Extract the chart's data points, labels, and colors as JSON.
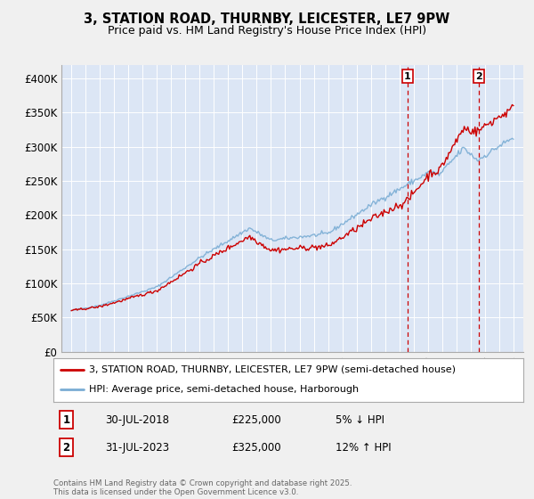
{
  "title_line1": "3, STATION ROAD, THURNBY, LEICESTER, LE7 9PW",
  "title_line2": "Price paid vs. HM Land Registry's House Price Index (HPI)",
  "background_color": "#f0f4ff",
  "plot_bg_color": "#dce6f5",
  "grid_color": "#ffffff",
  "ylim": [
    0,
    420000
  ],
  "yticks": [
    0,
    50000,
    100000,
    150000,
    200000,
    250000,
    300000,
    350000,
    400000
  ],
  "ytick_labels": [
    "£0",
    "£50K",
    "£100K",
    "£150K",
    "£200K",
    "£250K",
    "£300K",
    "£350K",
    "£400K"
  ],
  "legend_line1": "3, STATION ROAD, THURNBY, LEICESTER, LE7 9PW (semi-detached house)",
  "legend_line2": "HPI: Average price, semi-detached house, Harborough",
  "transaction1_date": "30-JUL-2018",
  "transaction1_price": 225000,
  "transaction1_label": "1",
  "transaction1_note": "5% ↓ HPI",
  "transaction2_date": "31-JUL-2023",
  "transaction2_price": 325000,
  "transaction2_label": "2",
  "transaction2_note": "12% ↑ HPI",
  "marker1_x": 2018.58,
  "marker2_x": 2023.58,
  "footer": "Contains HM Land Registry data © Crown copyright and database right 2025.\nThis data is licensed under the Open Government Licence v3.0.",
  "line_color_red": "#cc0000",
  "line_color_blue": "#7aadd4",
  "marker_box_color": "#cc0000",
  "fig_bg": "#f0f0f0"
}
